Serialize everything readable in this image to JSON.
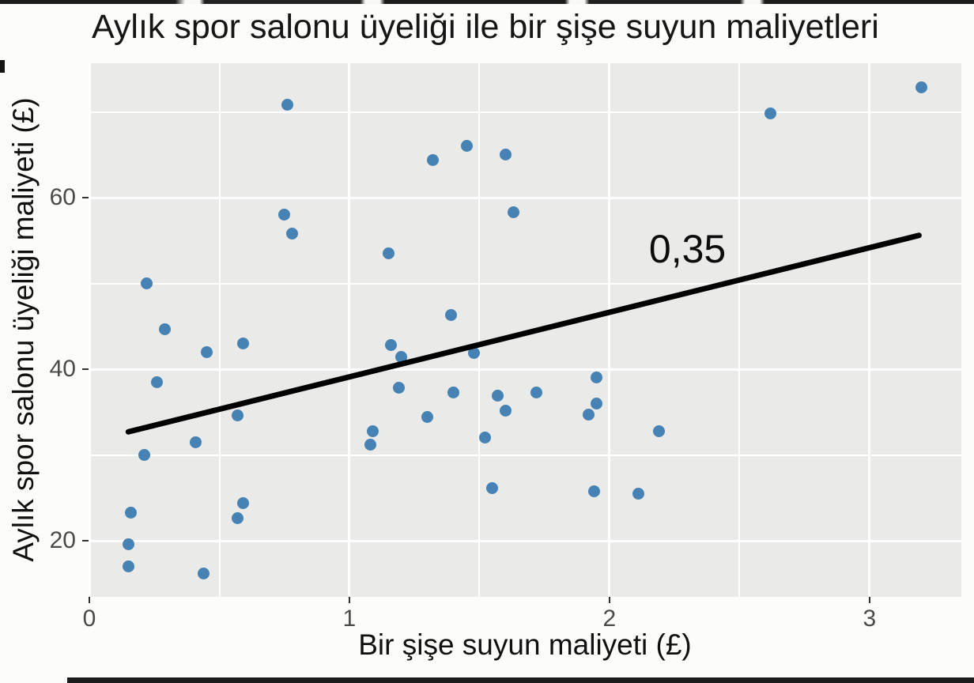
{
  "chart_data": {
    "type": "scatter",
    "title": "Aylık spor salonu üyeliği ile bir şişe suyun maliyetleri",
    "xlabel": "Bir şişe suyun maliyeti (£)",
    "ylabel": "Aylık spor salonu üyeliği maliyeti (£)",
    "annotation": {
      "text": "0,35",
      "x": 2.3,
      "y": 54
    },
    "xlim": [
      -0.003,
      3.353
    ],
    "ylim": [
      13.46,
      75.67
    ],
    "x_ticks": {
      "values": [
        0,
        1,
        2,
        3
      ],
      "labels": [
        "0",
        "1",
        "2",
        "3"
      ]
    },
    "y_ticks": {
      "values": [
        20,
        40,
        60
      ],
      "labels": [
        "20",
        "40",
        "60"
      ]
    },
    "x_minor": [
      0.5,
      1.5,
      2.5
    ],
    "y_minor": [
      30,
      50,
      70
    ],
    "grid": true,
    "legend": false,
    "trend_line": {
      "x1": 0.15,
      "y1": 32.7,
      "x2": 3.19,
      "y2": 55.6
    },
    "points": [
      [
        0.76,
        70.8
      ],
      [
        0.75,
        58.0
      ],
      [
        0.78,
        55.8
      ],
      [
        1.15,
        53.5
      ],
      [
        0.22,
        50.0
      ],
      [
        0.29,
        44.7
      ],
      [
        0.45,
        42.0
      ],
      [
        0.59,
        43.0
      ],
      [
        1.45,
        66.0
      ],
      [
        1.32,
        64.4
      ],
      [
        1.6,
        65.0
      ],
      [
        1.63,
        58.3
      ],
      [
        1.39,
        46.3
      ],
      [
        1.16,
        42.8
      ],
      [
        1.2,
        41.4
      ],
      [
        1.48,
        41.9
      ],
      [
        2.62,
        69.8
      ],
      [
        3.2,
        72.9
      ],
      [
        0.26,
        38.5
      ],
      [
        0.57,
        34.6
      ],
      [
        0.41,
        31.5
      ],
      [
        0.21,
        30.0
      ],
      [
        1.09,
        32.8
      ],
      [
        1.08,
        31.2
      ],
      [
        0.59,
        24.4
      ],
      [
        0.57,
        22.6
      ],
      [
        0.16,
        23.3
      ],
      [
        0.15,
        19.6
      ],
      [
        0.15,
        17.0
      ],
      [
        0.44,
        16.2
      ],
      [
        1.19,
        37.8
      ],
      [
        1.4,
        37.3
      ],
      [
        1.57,
        36.9
      ],
      [
        1.72,
        37.3
      ],
      [
        1.95,
        39.0
      ],
      [
        1.6,
        35.2
      ],
      [
        1.95,
        36.0
      ],
      [
        1.92,
        34.7
      ],
      [
        1.3,
        34.4
      ],
      [
        1.52,
        32.0
      ],
      [
        2.19,
        32.8
      ],
      [
        1.55,
        26.1
      ],
      [
        1.94,
        25.8
      ],
      [
        2.11,
        25.5
      ]
    ]
  },
  "colors": {
    "point": "#4682B4",
    "trend_line": "#000000",
    "panel_bg": "#EAEAE8",
    "grid_major": "#FFFFFF",
    "grid_minor": "#FFFFFF",
    "tick_mark": "#333333",
    "tick_label": "#4A4A4A",
    "title_text": "#161616"
  }
}
